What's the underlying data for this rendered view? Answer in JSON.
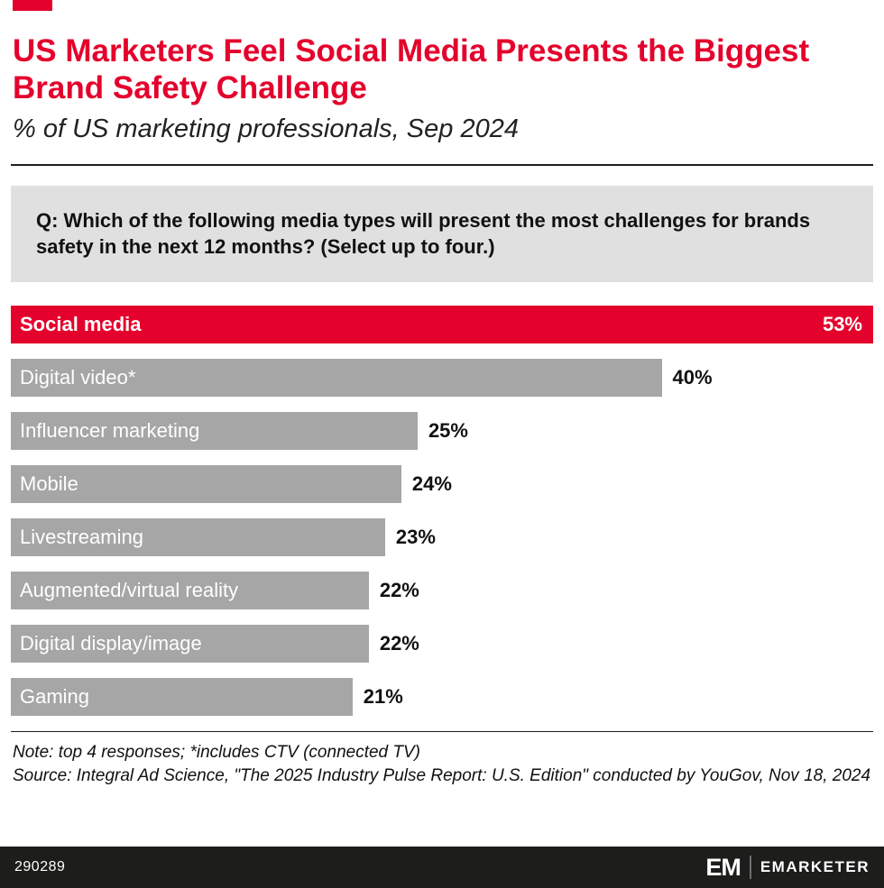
{
  "header": {
    "title": "US Marketers Feel Social Media Presents the Biggest Brand Safety Challenge",
    "subtitle": "% of US marketing professionals, Sep 2024"
  },
  "question": "Q: Which of the following media types will present the most challenges for brands safety in the next 12 months? (Select up to four.)",
  "chart_data": {
    "type": "bar",
    "orientation": "horizontal",
    "categories": [
      "Social media",
      "Digital video*",
      "Influencer marketing",
      "Mobile",
      "Livestreaming",
      "Augmented/virtual reality",
      "Digital display/image",
      "Gaming"
    ],
    "values": [
      53,
      40,
      25,
      24,
      23,
      22,
      22,
      21
    ],
    "value_suffix": "%",
    "xmax": 53,
    "highlight_index": 0,
    "highlight_color": "#e4012c",
    "bar_color": "#a6a6a6",
    "title": "US Marketers Feel Social Media Presents the Biggest Brand Safety Challenge",
    "xlabel": "",
    "ylabel": "",
    "legend": "none",
    "grid": false
  },
  "notes": {
    "note_line": "Note: top 4 responses; *includes CTV (connected TV)",
    "source_line": "Source: Integral Ad Science, \"The 2025 Industry Pulse Report: U.S. Edition\" conducted by YouGov, Nov 18, 2024"
  },
  "footer": {
    "chart_id": "290289",
    "logo_em": "EM",
    "logo_text": "EMARKETER"
  },
  "colors": {
    "accent_red": "#e4012c",
    "bar_gray": "#a6a6a6",
    "question_box_bg": "#e0e0e0",
    "footer_bg": "#1d1d1b"
  }
}
